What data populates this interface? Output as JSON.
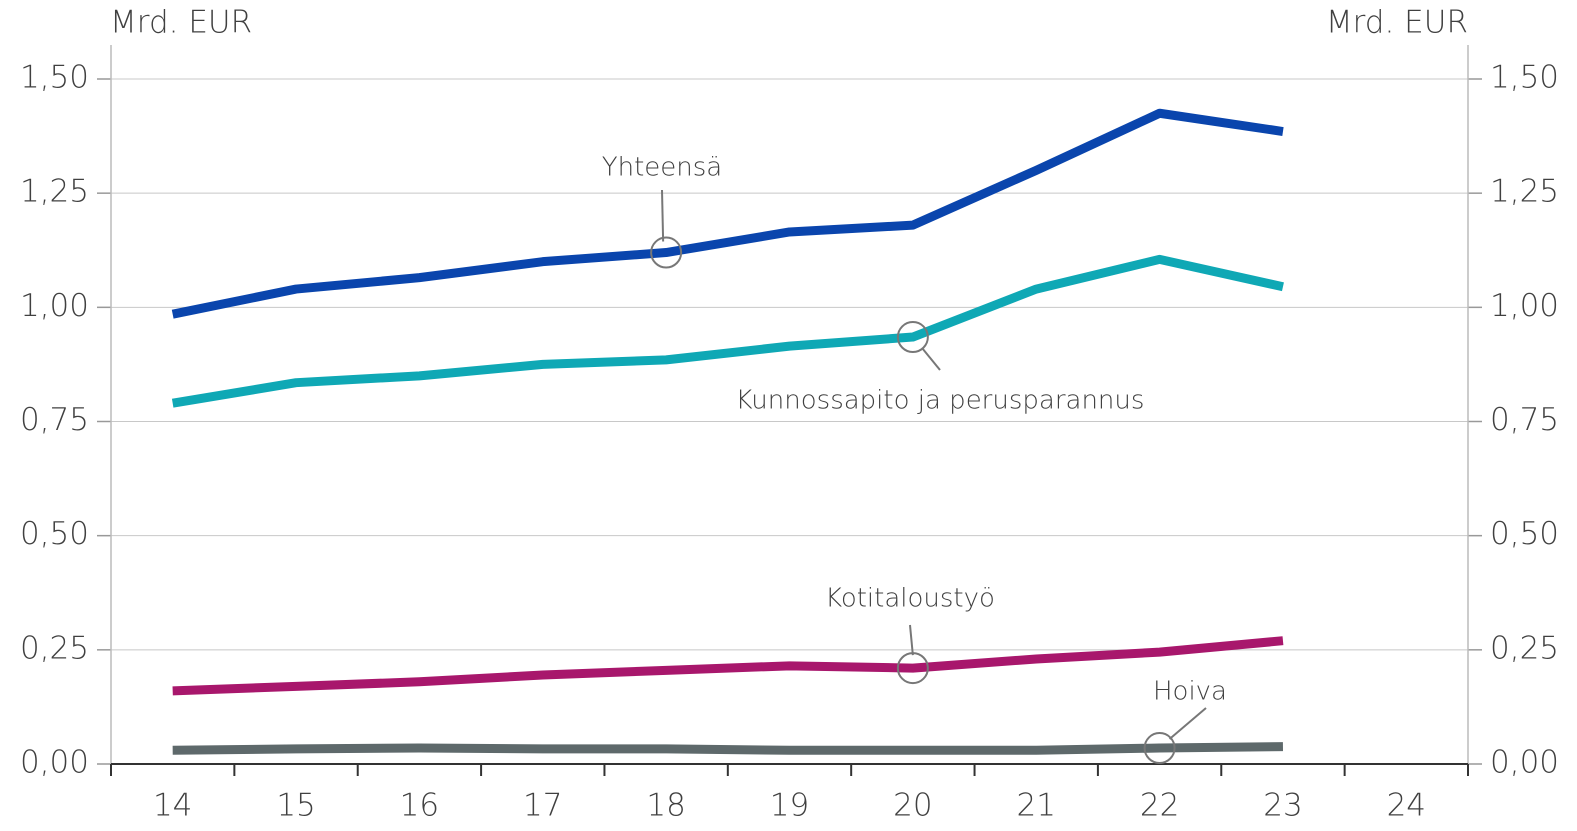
{
  "chart_data": {
    "type": "line",
    "y_label": "Mrd. EUR",
    "y2_label": "Mrd. EUR",
    "categories": [
      "14",
      "15",
      "16",
      "17",
      "18",
      "19",
      "20",
      "21",
      "22",
      "23",
      "24"
    ],
    "series": [
      {
        "name": "Yhteensä",
        "color": "#0a45ad",
        "values": [
          0.985,
          1.04,
          1.065,
          1.1,
          1.12,
          1.165,
          1.18,
          1.3,
          1.425,
          1.385,
          null
        ]
      },
      {
        "name": "Kunnossapito ja perusparannus",
        "color": "#0fa8b5",
        "values": [
          0.79,
          0.835,
          0.85,
          0.875,
          0.885,
          0.915,
          0.935,
          1.04,
          1.105,
          1.045,
          null
        ]
      },
      {
        "name": "Kotitaloustyö",
        "color": "#a8176c",
        "values": [
          0.16,
          0.17,
          0.18,
          0.195,
          0.205,
          0.215,
          0.21,
          0.23,
          0.245,
          0.27,
          null
        ]
      },
      {
        "name": "Hoiva",
        "color": "#5e696b",
        "values": [
          0.03,
          0.033,
          0.035,
          0.033,
          0.033,
          0.03,
          0.03,
          0.03,
          0.035,
          0.038,
          null
        ]
      }
    ],
    "ylim": [
      0,
      1.5
    ],
    "yticks": [
      {
        "value": 0,
        "label": "0,00"
      },
      {
        "value": 0.25,
        "label": "0,25"
      },
      {
        "value": 0.5,
        "label": "0,50"
      },
      {
        "value": 0.75,
        "label": "0,75"
      },
      {
        "value": 1,
        "label": "1,00"
      },
      {
        "value": 1.25,
        "label": "1,25"
      },
      {
        "value": 1.5,
        "label": "1,50"
      }
    ],
    "y2lim": [
      0,
      1.5
    ],
    "y2ticks": [
      {
        "value": 0,
        "label": "0,00"
      },
      {
        "value": 0.25,
        "label": "0,25"
      },
      {
        "value": 0.5,
        "label": "0,50"
      },
      {
        "value": 0.75,
        "label": "0,75"
      },
      {
        "value": 1,
        "label": "1,00"
      },
      {
        "value": 1.25,
        "label": "1,25"
      },
      {
        "value": 1.5,
        "label": "1,50"
      }
    ],
    "grid": true
  }
}
